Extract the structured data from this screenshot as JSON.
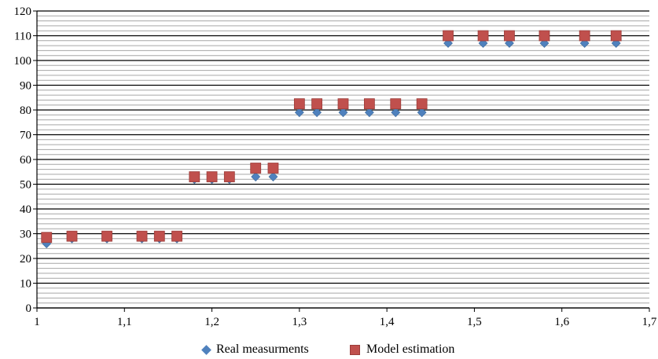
{
  "chart_data": {
    "type": "scatter",
    "title": "",
    "xlabel": "",
    "ylabel": "",
    "xlim": [
      1,
      1.7
    ],
    "ylim": [
      0,
      120
    ],
    "x_ticks": [
      "1",
      "1,1",
      "1,2",
      "1,3",
      "1,4",
      "1,5",
      "1,6",
      "1,7"
    ],
    "y_ticks": [
      "0",
      "10",
      "20",
      "30",
      "40",
      "50",
      "60",
      "70",
      "80",
      "90",
      "100",
      "110",
      "120"
    ],
    "y_major_step": 10,
    "y_minor_step": 2,
    "grid": true,
    "legend_position": "bottom",
    "series": [
      {
        "name": "Real measurments",
        "marker": "diamond",
        "color": "#4f81bd",
        "points": [
          [
            1.011,
            26
          ],
          [
            1.04,
            28
          ],
          [
            1.08,
            28
          ],
          [
            1.12,
            28
          ],
          [
            1.14,
            28
          ],
          [
            1.16,
            28
          ],
          [
            1.18,
            52
          ],
          [
            1.2,
            52
          ],
          [
            1.22,
            52
          ],
          [
            1.25,
            53
          ],
          [
            1.27,
            53
          ],
          [
            1.3,
            79
          ],
          [
            1.32,
            79
          ],
          [
            1.35,
            79
          ],
          [
            1.38,
            79
          ],
          [
            1.41,
            79
          ],
          [
            1.44,
            79
          ],
          [
            1.47,
            107
          ],
          [
            1.51,
            107
          ],
          [
            1.54,
            107
          ],
          [
            1.58,
            107
          ],
          [
            1.626,
            107
          ],
          [
            1.662,
            107
          ]
        ]
      },
      {
        "name": "Model estimation",
        "marker": "square",
        "color": "#c0504d",
        "points": [
          [
            1.011,
            28.5
          ],
          [
            1.04,
            29
          ],
          [
            1.08,
            29
          ],
          [
            1.12,
            29
          ],
          [
            1.14,
            29
          ],
          [
            1.16,
            29
          ],
          [
            1.18,
            53
          ],
          [
            1.2,
            53
          ],
          [
            1.22,
            53
          ],
          [
            1.25,
            56.5
          ],
          [
            1.27,
            56.5
          ],
          [
            1.3,
            82.5
          ],
          [
            1.32,
            82.5
          ],
          [
            1.35,
            82.5
          ],
          [
            1.38,
            82.5
          ],
          [
            1.41,
            82.5
          ],
          [
            1.44,
            82.5
          ],
          [
            1.47,
            110
          ],
          [
            1.51,
            110
          ],
          [
            1.54,
            110
          ],
          [
            1.58,
            110
          ],
          [
            1.626,
            110
          ],
          [
            1.662,
            110
          ]
        ]
      }
    ]
  }
}
